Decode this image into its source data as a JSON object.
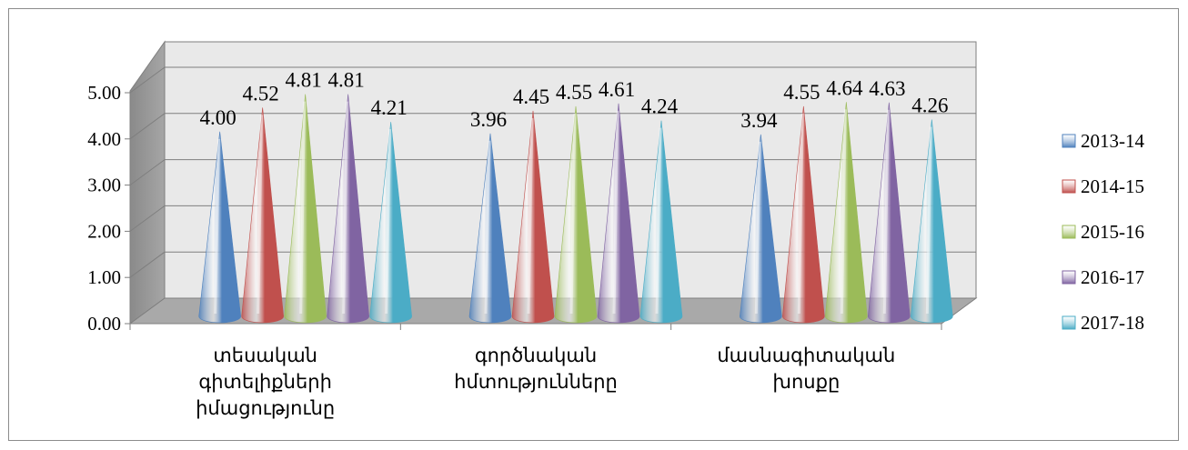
{
  "chart_data": {
    "type": "bar",
    "style": "3d-cone",
    "categories": [
      [
        "տեսական",
        "գիտելիքների",
        "իմացությունը"
      ],
      [
        "գործնական",
        "հմտությունները"
      ],
      [
        "մասնագիտական",
        "խոսքը"
      ]
    ],
    "series": [
      {
        "name": "2013-14",
        "color": "#4f81bd",
        "values": [
          4.0,
          3.96,
          3.94
        ],
        "labels": [
          "4.00",
          "3.96",
          "3.94"
        ]
      },
      {
        "name": "2014-15",
        "color": "#c0504d",
        "values": [
          4.52,
          4.45,
          4.55
        ],
        "labels": [
          "4.52",
          "4.45",
          "4.55"
        ]
      },
      {
        "name": "2015-16",
        "color": "#9bbb59",
        "values": [
          4.81,
          4.55,
          4.64
        ],
        "labels": [
          "4.81",
          "4.55",
          "4.64"
        ]
      },
      {
        "name": "2016-17",
        "color": "#8064a2",
        "values": [
          4.81,
          4.61,
          4.63
        ],
        "labels": [
          "4.81",
          "4.61",
          "4.63"
        ]
      },
      {
        "name": "2017-18",
        "color": "#4bacc6",
        "values": [
          4.21,
          4.24,
          4.26
        ],
        "labels": [
          "4.21",
          "4.24",
          "4.26"
        ]
      }
    ],
    "yticks": [
      "0.00",
      "1.00",
      "2.00",
      "3.00",
      "4.00",
      "5.00"
    ],
    "ylim": [
      0,
      5
    ],
    "grid": true,
    "legend_position": "right"
  }
}
